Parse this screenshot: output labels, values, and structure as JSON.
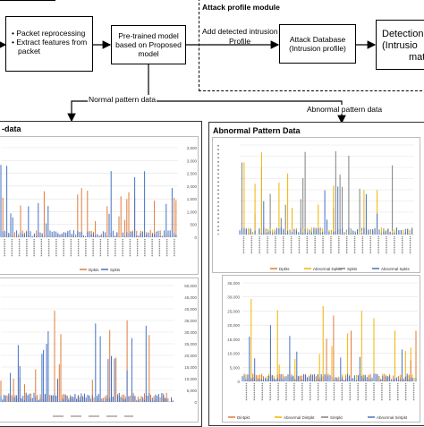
{
  "diagram": {
    "module_title": "Attack profile module",
    "box_packet": [
      "Packet reprocessing",
      "Extract features from",
      "packet"
    ],
    "box_model": [
      "Pre-trained model",
      "based on Proposed",
      "model"
    ],
    "add_profile": [
      "Add detected intrusion",
      "Profile"
    ],
    "box_database": [
      "Attack Database",
      "(Intrusion profile)"
    ],
    "box_detection": [
      "Detection",
      "(Intrusio",
      "matc"
    ],
    "edge_normal": "Normal pattern data",
    "edge_abnormal": "Abnormal pattern data"
  },
  "panels": {
    "normal_title": "-data",
    "abnormal_title": "Abnormal Pattern Data"
  },
  "charts": {
    "normal_top": {
      "right_ticks": [
        "3,500",
        "3,000",
        "2,500",
        "2,000",
        "1,500",
        "1,000",
        "500",
        "0"
      ],
      "legend": [
        "Dpkts",
        "Spkts"
      ],
      "colors": {
        "a": "#e07b39",
        "b": "#4472c4"
      }
    },
    "normal_bottom": {
      "right_ticks": [
        "50,000",
        "45,000",
        "40,000",
        "35,000",
        "30,000",
        "25,000",
        "20,000",
        "15,000",
        "10,000",
        "5,000",
        "0"
      ]
    },
    "abnormal_top": {
      "legend": [
        "Dpkts",
        "Abnormal Dpkts",
        "Spkts",
        "Abnormal Spkts"
      ],
      "colors": {
        "a": "#e07b39",
        "b": "#f0b400",
        "c": "#808080",
        "d": "#4472c4"
      }
    },
    "abnormal_bottom": {
      "left_ticks": [
        "35,000",
        "30,000",
        "25,000",
        "20,000",
        "15,000",
        "10,000",
        "5,000",
        "0"
      ],
      "legend": [
        "Dintpkt",
        "Abnormal Dintpkt",
        "Sintpkt",
        "Abnormal Sintpkt"
      ],
      "colors": {
        "a": "#e07b39",
        "b": "#f0b400",
        "c": "#808080",
        "d": "#4472c4"
      }
    }
  }
}
